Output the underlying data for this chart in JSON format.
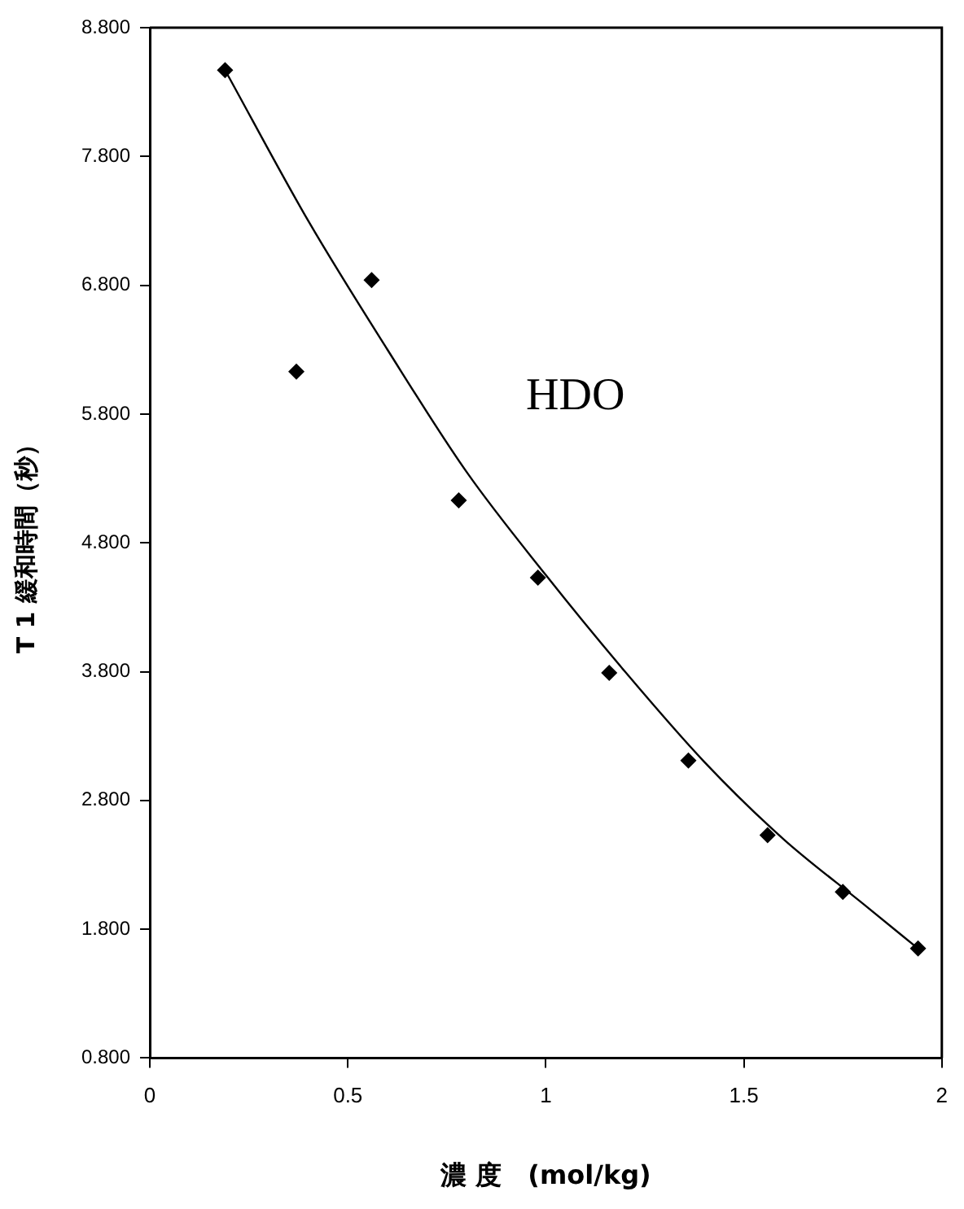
{
  "chart_data": {
    "type": "scatter",
    "xlabel": "濃 度　(mol/kg)",
    "ylabel": "T 1 緩和時間（秒）",
    "annotations": [
      "HDO"
    ],
    "xlim": [
      0,
      2
    ],
    "xticks": [
      0,
      0.5,
      1,
      1.5,
      2
    ],
    "ylim": [
      0.8,
      8.8
    ],
    "yticks": [
      {
        "value": 0.8,
        "label": "0.800"
      },
      {
        "value": 1.8,
        "label": "1.800"
      },
      {
        "value": 2.8,
        "label": "2.800"
      },
      {
        "value": 3.8,
        "label": "3.800"
      },
      {
        "value": 4.8,
        "label": "4.800"
      },
      {
        "value": 5.8,
        "label": "5.800"
      },
      {
        "value": 6.8,
        "label": "6.800"
      },
      {
        "value": 7.8,
        "label": "7.800"
      },
      {
        "value": 8.8,
        "label": "8.800"
      }
    ],
    "grid": false,
    "legend": false,
    "marker": "diamond",
    "series": [
      {
        "type": "scatter",
        "color": "#000000",
        "x": [
          0.19,
          0.37,
          0.56,
          0.78,
          0.98,
          1.16,
          1.36,
          1.56,
          1.75,
          1.94
        ],
        "values": [
          8.47,
          6.13,
          6.84,
          5.13,
          4.53,
          3.79,
          3.11,
          2.53,
          2.09,
          1.65
        ]
      },
      {
        "type": "line",
        "color": "#000000",
        "marker": "none",
        "x": [
          0.19,
          0.4,
          0.6,
          0.8,
          1.0,
          1.2,
          1.4,
          1.6,
          1.8,
          1.94
        ],
        "values": [
          8.47,
          7.3,
          6.3,
          5.35,
          4.55,
          3.8,
          3.1,
          2.5,
          2.0,
          1.65
        ]
      }
    ]
  }
}
